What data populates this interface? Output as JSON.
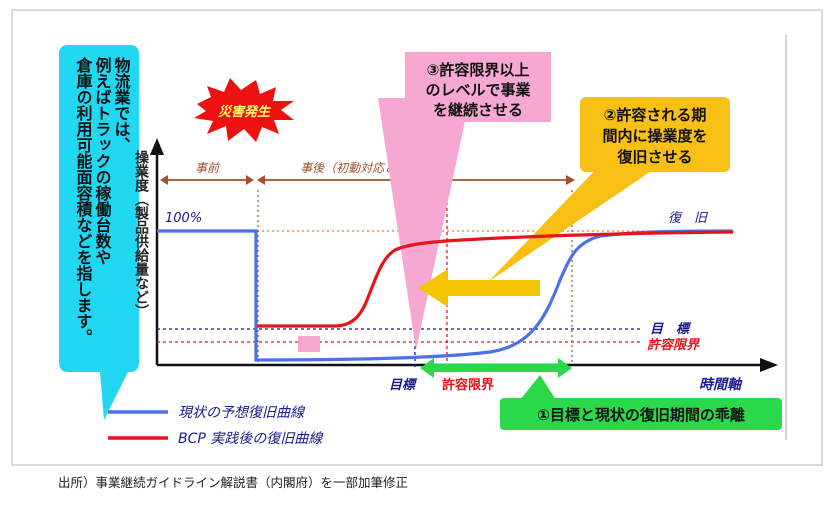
{
  "left_note": "物流業では、例えばトラックの稼働台数や倉庫の利用可能面容積などを指します。",
  "left_note_lines": [
    "物流業では、",
    "例えばトラックの稼働台数や",
    "倉庫の利用可能面容積などを指します。"
  ],
  "disaster_label": "災害発生",
  "callout3": [
    "③許容限界以上",
    "のレベルで事業",
    "を継続させる"
  ],
  "callout2": [
    "②許容される期",
    "間内に操業度を",
    "復旧させる"
  ],
  "callout1": "①目標と現状の復旧期間の乖離",
  "y_axis_label": "操業度（製品供給量など）",
  "x_axis_label": "時間軸",
  "before_label": "事前",
  "after_label": "事後（初動対応＆BCP 対応）",
  "level_100": "100%",
  "recovery_label": "復　旧",
  "target_label": "目　標",
  "limit_label": "許容限界",
  "x_target": "目標",
  "x_limit": "許容限界",
  "legend": [
    {
      "label": "現状の予想復旧曲線",
      "color": "#4a72e6"
    },
    {
      "label": "BCP 実践後の復旧曲線",
      "color": "#e8141c"
    }
  ],
  "source": "出所）事業継続ガイドライン解説書（内閣府）を一部加筆修正",
  "colors": {
    "current_curve": "#4a72e6",
    "bcp_curve": "#e8141c",
    "note_bg": "#21d7f2",
    "callout3_bg": "#f7a8d2",
    "callout2_bg": "#f8c014",
    "callout1_bg": "#2ad84a",
    "arrow_yellow": "#f5c400",
    "burst": "#ee1111",
    "brown": "#a0522d",
    "navy": "#1b1b8e"
  }
}
